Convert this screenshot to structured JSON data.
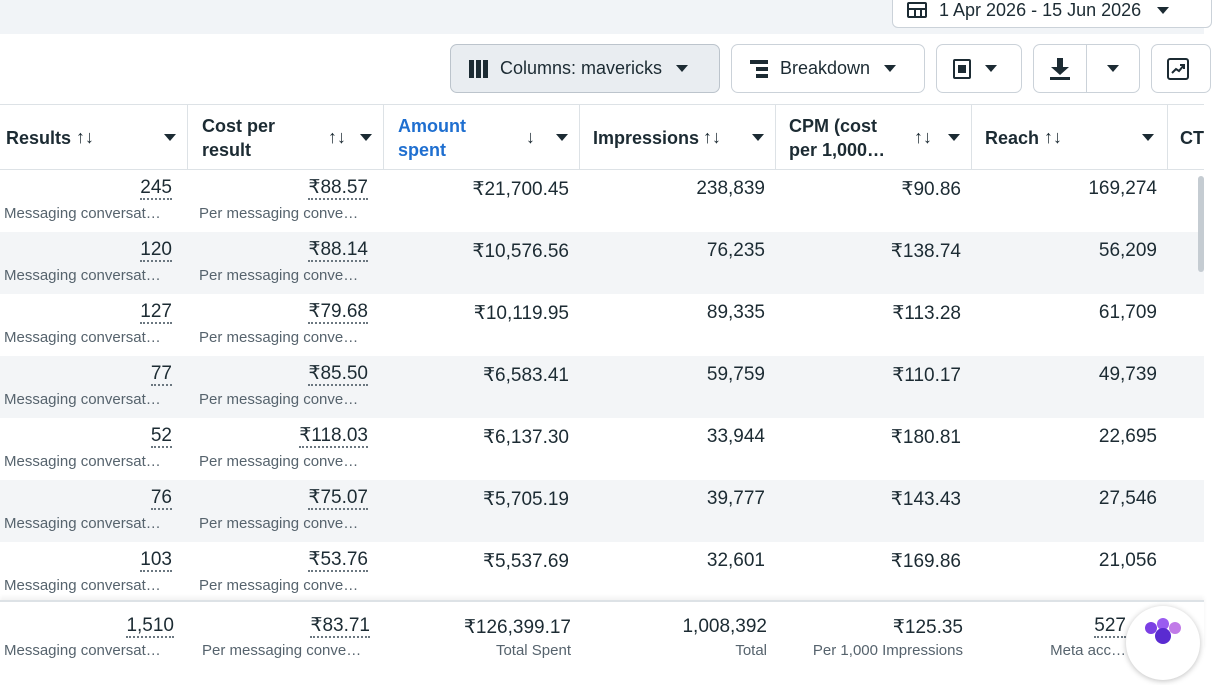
{
  "top": {
    "date_range": "1 Apr 2026 - 15 Jun 2026"
  },
  "toolbar": {
    "columns_label": "Columns: mavericks",
    "breakdown_label": "Breakdown"
  },
  "columns": [
    {
      "label": "Results",
      "sort": "↑↓"
    },
    {
      "label_line1": "Cost per",
      "label_line2": "result",
      "sort": "↑↓"
    },
    {
      "label_line1": "Amount",
      "label_line2": "spent",
      "sort": "↓"
    },
    {
      "label": "Impressions",
      "sort": "↑↓"
    },
    {
      "label_line1": "CPM (cost",
      "label_line2": "per 1,000…",
      "sort": "↑↓"
    },
    {
      "label": "Reach",
      "sort": "↑↓"
    },
    {
      "label": "CT"
    }
  ],
  "rows": [
    {
      "results": "245",
      "results_sub": "Messaging conversat…",
      "cost": "₹88.57",
      "cost_sub": "Per messaging conve…",
      "amount": "₹21,700.45",
      "impressions": "238,839",
      "cpm": "₹90.86",
      "reach": "169,274"
    },
    {
      "results": "120",
      "results_sub": "Messaging conversat…",
      "cost": "₹88.14",
      "cost_sub": "Per messaging conve…",
      "amount": "₹10,576.56",
      "impressions": "76,235",
      "cpm": "₹138.74",
      "reach": "56,209"
    },
    {
      "results": "127",
      "results_sub": "Messaging conversat…",
      "cost": "₹79.68",
      "cost_sub": "Per messaging conve…",
      "amount": "₹10,119.95",
      "impressions": "89,335",
      "cpm": "₹113.28",
      "reach": "61,709"
    },
    {
      "results": "77",
      "results_sub": "Messaging conversat…",
      "cost": "₹85.50",
      "cost_sub": "Per messaging conve…",
      "amount": "₹6,583.41",
      "impressions": "59,759",
      "cpm": "₹110.17",
      "reach": "49,739"
    },
    {
      "results": "52",
      "results_sub": "Messaging conversat…",
      "cost": "₹118.03",
      "cost_sub": "Per messaging conve…",
      "amount": "₹6,137.30",
      "impressions": "33,944",
      "cpm": "₹180.81",
      "reach": "22,695"
    },
    {
      "results": "76",
      "results_sub": "Messaging conversat…",
      "cost": "₹75.07",
      "cost_sub": "Per messaging conve…",
      "amount": "₹5,705.19",
      "impressions": "39,777",
      "cpm": "₹143.43",
      "reach": "27,546"
    },
    {
      "results": "103",
      "results_sub": "Messaging conversat…",
      "cost": "₹53.76",
      "cost_sub": "Per messaging conve…",
      "amount": "₹5,537.69",
      "impressions": "32,601",
      "cpm": "₹169.86",
      "reach": "21,056"
    }
  ],
  "totals": {
    "results": "1,510",
    "results_sub": "Messaging conversat…",
    "cost": "₹83.71",
    "cost_sub": "Per messaging conve…",
    "amount": "₹126,399.17",
    "amount_sub": "Total Spent",
    "impressions": "1,008,392",
    "impressions_sub": "Total",
    "cpm": "₹125.35",
    "cpm_sub": "Per 1,000 Impressions",
    "reach": "527",
    "reach_sub": "Meta acc…"
  },
  "colors": {
    "accent_blue": "#1f6fd0",
    "row_alt": "#f3f5f7",
    "border": "#dde2e6"
  }
}
